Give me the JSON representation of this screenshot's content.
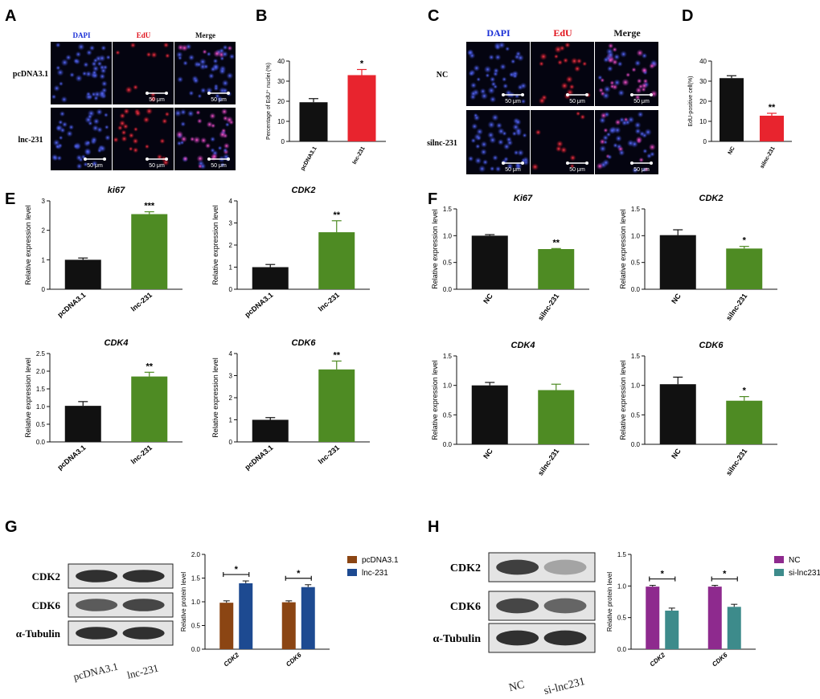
{
  "panels": {
    "A": {
      "letter": "A",
      "columns": [
        "DAPI",
        "EdU",
        "Merge"
      ],
      "rows": [
        "pcDNA3.1",
        "lnc-231"
      ],
      "scale_bar": "50 μm"
    },
    "C": {
      "letter": "C",
      "columns": [
        "DAPI",
        "EdU",
        "Merge"
      ],
      "rows": [
        "NC",
        "silnc-231"
      ],
      "scale_bar": "50 μm"
    },
    "G": {
      "letter": "G",
      "blot_labels": [
        "CDK2",
        "CDK6",
        "α-Tubulin"
      ],
      "lanes": [
        "pcDNA3.1",
        "lnc-231"
      ]
    },
    "H": {
      "letter": "H",
      "blot_labels": [
        "CDK2",
        "CDK6",
        "α-Tubulin"
      ],
      "lanes": [
        "NC",
        "si-lnc231"
      ]
    }
  },
  "chart_data": [
    {
      "id": "B",
      "panel": "B",
      "type": "bar",
      "ylabel": "Percentage of EdU⁺ nuclei (%)",
      "categories": [
        "pcDNA3.1",
        "lnc-231"
      ],
      "values": [
        19.5,
        33
      ],
      "errors": [
        1.8,
        2.8
      ],
      "colors": [
        "#111111",
        "#e8242e"
      ],
      "ylim": [
        0,
        40
      ],
      "yticks": [
        0,
        10,
        20,
        30,
        40
      ],
      "significance": [
        {
          "index": 1,
          "text": "*"
        }
      ]
    },
    {
      "id": "D",
      "panel": "D",
      "type": "bar",
      "ylabel": "EdU-positive cell(%)",
      "categories": [
        "NC",
        "silnc-231"
      ],
      "values": [
        31.5,
        12.8
      ],
      "errors": [
        1.2,
        1.2
      ],
      "colors": [
        "#111111",
        "#e8242e"
      ],
      "ylim": [
        0,
        40
      ],
      "yticks": [
        0,
        10,
        20,
        30,
        40
      ],
      "significance": [
        {
          "index": 1,
          "text": "**"
        }
      ]
    },
    {
      "id": "E1",
      "panel": "E",
      "type": "bar",
      "title": "ki67",
      "ylabel": "Relative expression level",
      "categories": [
        "pcDNA3.1",
        "lnc-231"
      ],
      "values": [
        1.0,
        2.55
      ],
      "errors": [
        0.06,
        0.08
      ],
      "colors": [
        "#111111",
        "#4e8b23"
      ],
      "ylim": [
        0,
        3
      ],
      "yticks": [
        0,
        1,
        2,
        3
      ],
      "significance": [
        {
          "index": 1,
          "text": "***"
        }
      ]
    },
    {
      "id": "E2",
      "panel": "E",
      "type": "bar",
      "title": "CDK2",
      "ylabel": "Relative expression level",
      "categories": [
        "pcDNA3.1",
        "lnc-231"
      ],
      "values": [
        1.0,
        2.58
      ],
      "errors": [
        0.12,
        0.52
      ],
      "colors": [
        "#111111",
        "#4e8b23"
      ],
      "ylim": [
        0,
        4
      ],
      "yticks": [
        0,
        1,
        2,
        3,
        4
      ],
      "significance": [
        {
          "index": 1,
          "text": "**"
        }
      ]
    },
    {
      "id": "E3",
      "panel": "E",
      "type": "bar",
      "title": "CDK4",
      "ylabel": "Relative expression level",
      "categories": [
        "pcDNA3.1",
        "lnc-231"
      ],
      "values": [
        1.02,
        1.85
      ],
      "errors": [
        0.12,
        0.12
      ],
      "colors": [
        "#111111",
        "#4e8b23"
      ],
      "ylim": [
        0,
        2.5
      ],
      "yticks": [
        0,
        0.5,
        1.0,
        1.5,
        2.0,
        2.5
      ],
      "significance": [
        {
          "index": 1,
          "text": "**"
        }
      ]
    },
    {
      "id": "E4",
      "panel": "E",
      "type": "bar",
      "title": "CDK6",
      "ylabel": "Relative expression level",
      "categories": [
        "pcDNA3.1",
        "lnc-231"
      ],
      "values": [
        1.0,
        3.28
      ],
      "errors": [
        0.1,
        0.38
      ],
      "colors": [
        "#111111",
        "#4e8b23"
      ],
      "ylim": [
        0,
        4
      ],
      "yticks": [
        0,
        1,
        2,
        3,
        4
      ],
      "significance": [
        {
          "index": 1,
          "text": "**"
        }
      ]
    },
    {
      "id": "F1",
      "panel": "F",
      "type": "bar",
      "title": "Ki67",
      "ylabel": "Relative expression level",
      "categories": [
        "NC",
        "silnc-231"
      ],
      "values": [
        1.0,
        0.75
      ],
      "errors": [
        0.02,
        0.01
      ],
      "colors": [
        "#111111",
        "#4e8b23"
      ],
      "ylim": [
        0,
        1.5
      ],
      "yticks": [
        0,
        0.5,
        1.0,
        1.5
      ],
      "significance": [
        {
          "index": 1,
          "text": "**"
        }
      ]
    },
    {
      "id": "F2",
      "panel": "F",
      "type": "bar",
      "title": "CDK2",
      "ylabel": "Relative expression level",
      "categories": [
        "NC",
        "silnc-231"
      ],
      "values": [
        1.01,
        0.76
      ],
      "errors": [
        0.1,
        0.04
      ],
      "colors": [
        "#111111",
        "#4e8b23"
      ],
      "ylim": [
        0,
        1.5
      ],
      "yticks": [
        0,
        0.5,
        1.0,
        1.5
      ],
      "significance": [
        {
          "index": 1,
          "text": "*"
        }
      ]
    },
    {
      "id": "F3",
      "panel": "F",
      "type": "bar",
      "title": "CDK4",
      "ylabel": "Relative expression level",
      "categories": [
        "NC",
        "silnc-231"
      ],
      "values": [
        1.0,
        0.92
      ],
      "errors": [
        0.05,
        0.1
      ],
      "colors": [
        "#111111",
        "#4e8b23"
      ],
      "ylim": [
        0,
        1.5
      ],
      "yticks": [
        0,
        0.5,
        1.0,
        1.5
      ],
      "significance": []
    },
    {
      "id": "F4",
      "panel": "F",
      "type": "bar",
      "title": "CDK6",
      "ylabel": "Relative expression level",
      "categories": [
        "NC",
        "silnc-231"
      ],
      "values": [
        1.02,
        0.74
      ],
      "errors": [
        0.12,
        0.07
      ],
      "colors": [
        "#111111",
        "#4e8b23"
      ],
      "ylim": [
        0,
        1.5
      ],
      "yticks": [
        0,
        0.5,
        1.0,
        1.5
      ],
      "significance": [
        {
          "index": 1,
          "text": "*"
        }
      ]
    },
    {
      "id": "G",
      "panel": "G",
      "type": "bar",
      "ylabel": "Relative protein level",
      "categories": [
        "CDK2",
        "CDK6"
      ],
      "series": [
        {
          "name": "pcDNA3.1",
          "values": [
            0.98,
            0.99
          ],
          "errors": [
            0.04,
            0.03
          ],
          "color": "#8b4513"
        },
        {
          "name": "lnc-231",
          "values": [
            1.39,
            1.31
          ],
          "errors": [
            0.05,
            0.05
          ],
          "color": "#1d4a91"
        }
      ],
      "ylim": [
        0,
        2.0
      ],
      "yticks": [
        0,
        0.5,
        1.0,
        1.5,
        2.0
      ],
      "significance": [
        "*",
        "*"
      ],
      "legend": "right"
    },
    {
      "id": "H",
      "panel": "H",
      "type": "bar",
      "ylabel": "Relative protein level",
      "categories": [
        "CDK2",
        "CDK6"
      ],
      "series": [
        {
          "name": "NC",
          "values": [
            0.99,
            0.99
          ],
          "errors": [
            0.02,
            0.02
          ],
          "color": "#8e2a8e"
        },
        {
          "name": "si-lnc231",
          "values": [
            0.61,
            0.67
          ],
          "errors": [
            0.04,
            0.04
          ],
          "color": "#3d8b8b"
        }
      ],
      "ylim": [
        0,
        1.5
      ],
      "yticks": [
        0,
        0.5,
        1.0,
        1.5
      ],
      "significance": [
        "*",
        "*"
      ],
      "legend": "right"
    }
  ]
}
